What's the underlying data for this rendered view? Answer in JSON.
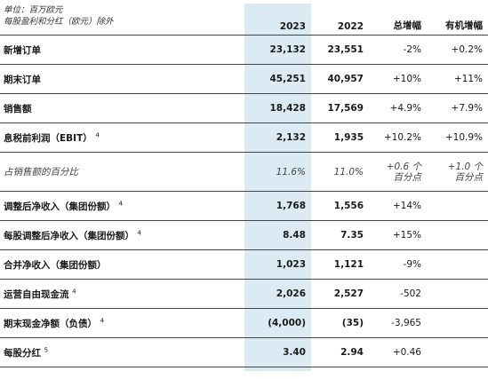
{
  "header": {
    "unit": "单位：百万欧元",
    "unit_note": "每股盈利和分红（欧元）除外",
    "columns": [
      "2023",
      "2022",
      "总增幅",
      "有机增幅"
    ]
  },
  "table": {
    "rows": [
      {
        "label": "新增订单",
        "values": [
          "23,132",
          "23,551",
          "-2%",
          "+0.2%"
        ]
      },
      {
        "label": "期末订单",
        "values": [
          "45,251",
          "40,957",
          "+10%",
          "+11%"
        ]
      },
      {
        "label": "销售额",
        "values": [
          "18,428",
          "17,569",
          "+4.9%",
          "+7.9%"
        ]
      },
      {
        "label": "息税前利润（EBIT）",
        "note": "4",
        "values": [
          "2,132",
          "1,935",
          "+10.2%",
          "+10.9%"
        ]
      },
      {
        "label": "占销售额的百分比",
        "italic": true,
        "values": [
          "11.6%",
          "11.0%",
          [
            "+0.6 个",
            "百分点"
          ],
          [
            "+1.0 个",
            "百分点"
          ]
        ]
      },
      {
        "label": "调整后净收入（集团份额）",
        "note": "4",
        "values": [
          "1,768",
          "1,556",
          "+14%"
        ]
      },
      {
        "label": "每股调整后净收入（集团份额）",
        "note": "4",
        "values": [
          "8.48",
          "7.35",
          "+15%"
        ]
      },
      {
        "label": "合并净收入（集团份额）",
        "values": [
          "1,023",
          "1,121",
          "-9%"
        ]
      },
      {
        "label": "运营自由现金流",
        "note": "4",
        "values": [
          "2,026",
          "2,527",
          "-502"
        ]
      },
      {
        "label": "期末现金净额（负债）",
        "note": "4",
        "values": [
          "(4,000)",
          "(35)",
          "-3,965"
        ]
      },
      {
        "label": "每股分红",
        "note": "5",
        "values": [
          "3.40",
          "2.94",
          "+0.46"
        ]
      }
    ]
  }
}
